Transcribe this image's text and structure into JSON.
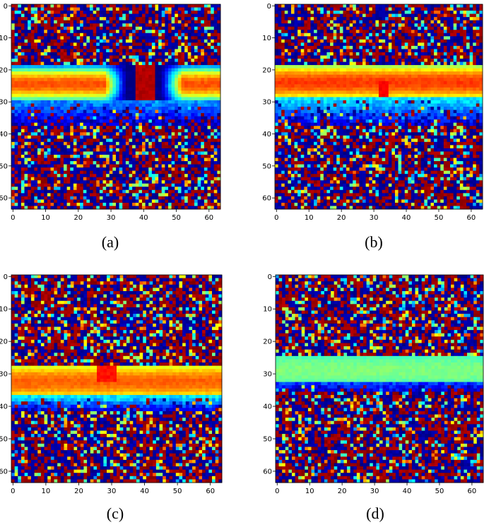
{
  "chart_data": [
    {
      "type": "heatmap",
      "caption": "(a)",
      "grid_size": 64,
      "colormap": "jet",
      "xticks": [
        0,
        10,
        20,
        30,
        40,
        50,
        60
      ],
      "yticks": [
        0,
        10,
        20,
        30,
        40,
        50,
        60
      ],
      "xlim": [
        0,
        63
      ],
      "ylim": [
        63,
        0
      ],
      "band": {
        "rows": [
          19,
          30
        ],
        "center_value": 0.8,
        "edge_value": 0.3
      },
      "band_features": [
        {
          "shape": "trough",
          "cols": [
            28,
            52
          ],
          "value": 0.0
        },
        {
          "shape": "spike",
          "cols": [
            38,
            44
          ],
          "rows": [
            18,
            30
          ],
          "value": 0.95
        }
      ],
      "lower_gradient": {
        "rows": [
          30,
          38
        ],
        "value": 0.2
      },
      "noise": "random"
    },
    {
      "type": "heatmap",
      "caption": "(b)",
      "grid_size": 64,
      "colormap": "jet",
      "xticks": [
        0,
        10,
        20,
        30,
        40,
        50,
        60
      ],
      "yticks": [
        0,
        10,
        20,
        30,
        40,
        50,
        60
      ],
      "xlim": [
        0,
        63
      ],
      "ylim": [
        63,
        0
      ],
      "band": {
        "rows": [
          19,
          29
        ],
        "center_value": 0.82,
        "edge_value": 0.55
      },
      "band_features": [
        {
          "shape": "spot",
          "cols": [
            32,
            35
          ],
          "rows": [
            24,
            29
          ],
          "value": 0.88
        }
      ],
      "lower_gradient": {
        "rows": [
          29,
          38
        ],
        "value": 0.3
      },
      "noise": "random"
    },
    {
      "type": "heatmap",
      "caption": "(c)",
      "grid_size": 64,
      "colormap": "jet",
      "xticks": [
        0,
        10,
        20,
        30,
        40,
        50,
        60
      ],
      "yticks": [
        0,
        10,
        20,
        30,
        40,
        50,
        60
      ],
      "xlim": [
        0,
        63
      ],
      "ylim": [
        63,
        0
      ],
      "band": {
        "rows": [
          28,
          37
        ],
        "center_value": 0.78,
        "edge_value": 0.6
      },
      "band_features": [
        {
          "shape": "spot",
          "cols": [
            26,
            32
          ],
          "rows": [
            28,
            33
          ],
          "value": 0.86
        }
      ],
      "lower_gradient": {
        "rows": [
          37,
          42
        ],
        "value": 0.3
      },
      "noise": "random"
    },
    {
      "type": "heatmap",
      "caption": "(d)",
      "grid_size": 64,
      "colormap": "jet",
      "xticks": [
        0,
        10,
        20,
        30,
        40,
        50,
        60
      ],
      "yticks": [
        0,
        10,
        20,
        30,
        40,
        50,
        60
      ],
      "xlim": [
        0,
        63
      ],
      "ylim": [
        63,
        0
      ],
      "band": {
        "rows": [
          25,
          33
        ],
        "center_value": 0.5,
        "edge_value": 0.45
      },
      "band_features": [],
      "lower_gradient": {
        "rows": [
          33,
          36
        ],
        "value": 0.12
      },
      "noise": "random"
    }
  ]
}
